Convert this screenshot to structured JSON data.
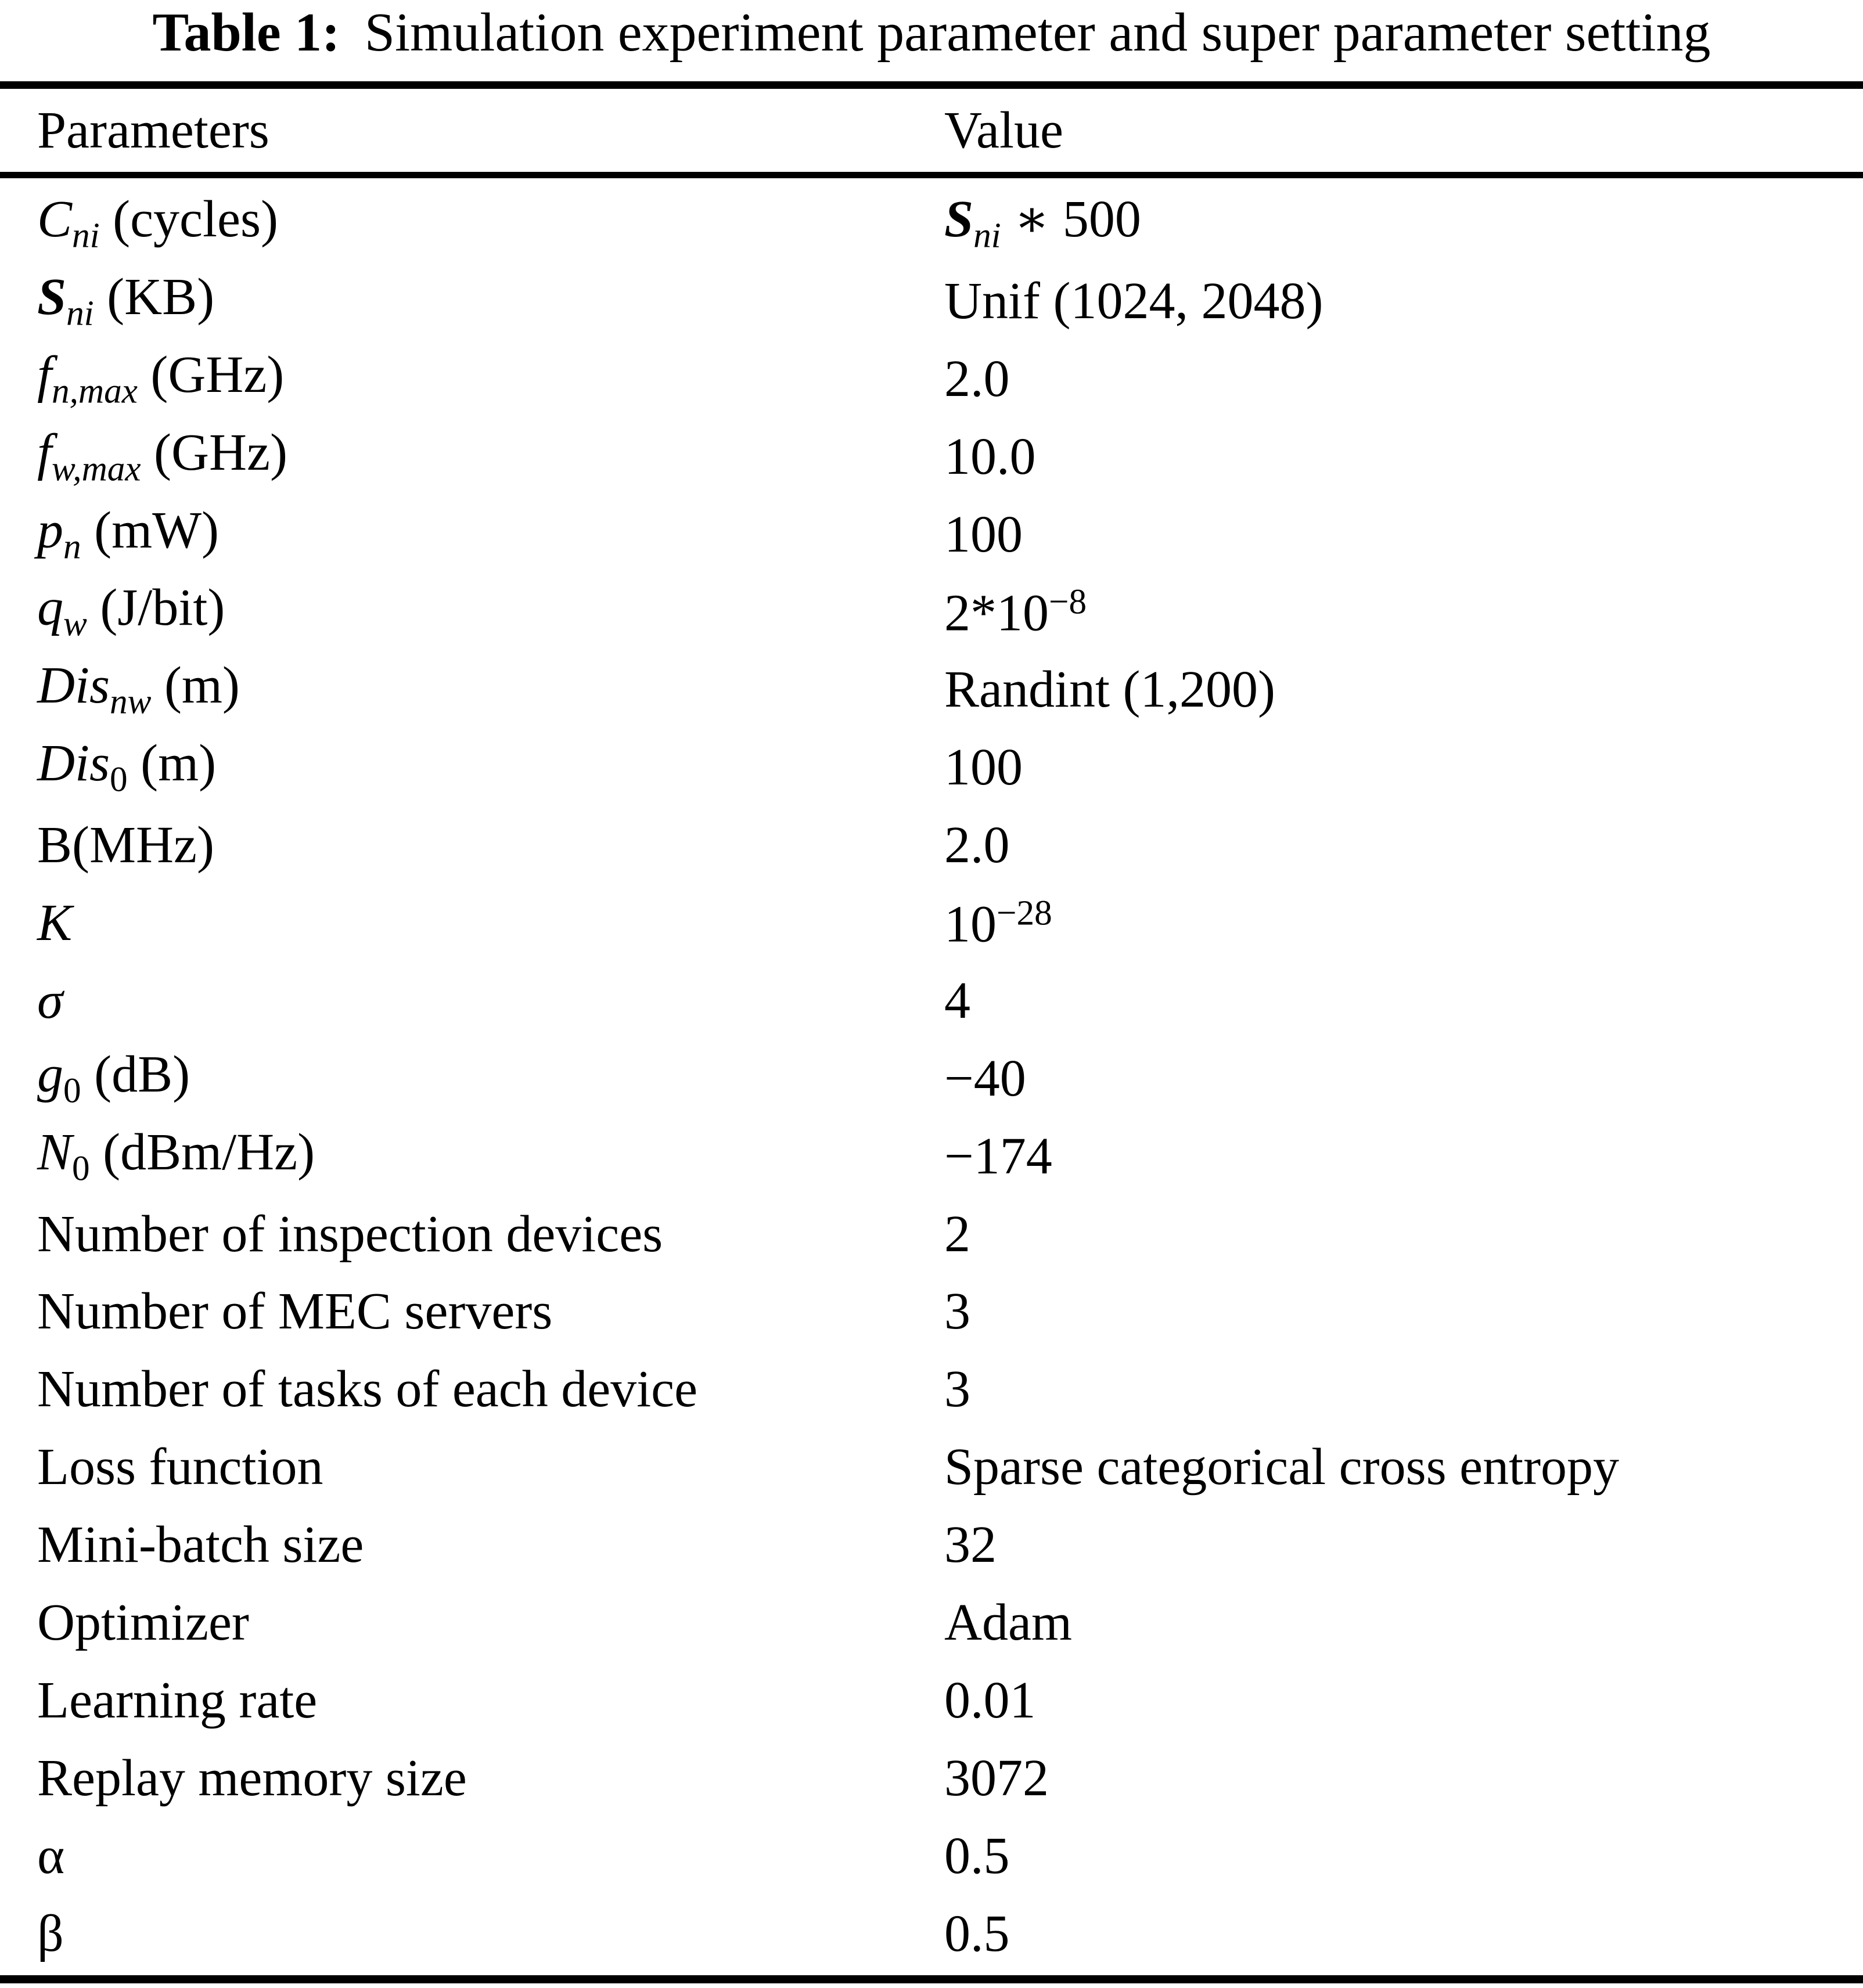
{
  "title": {
    "label": "Table 1:",
    "text": "Simulation experiment parameter and super parameter setting"
  },
  "columns": {
    "param": "Parameters",
    "value": "Value"
  },
  "rows": [
    {
      "param": [
        [
          "C",
          "i"
        ],
        [
          "ni",
          "is"
        ],
        [
          " (cycles)",
          ""
        ]
      ],
      "value": [
        [
          "S",
          "bi"
        ],
        [
          "ni",
          "is"
        ],
        [
          " ∗ 500",
          ""
        ]
      ]
    },
    {
      "param": [
        [
          "S",
          "bi"
        ],
        [
          "ni",
          "is"
        ],
        [
          " (KB)",
          ""
        ]
      ],
      "value": [
        [
          "Unif (1024, 2048)",
          ""
        ]
      ]
    },
    {
      "param": [
        [
          "f",
          "i"
        ],
        [
          "n,max",
          "is"
        ],
        [
          " (GHz)",
          ""
        ]
      ],
      "value": [
        [
          "2.0",
          ""
        ]
      ]
    },
    {
      "param": [
        [
          "f",
          "i"
        ],
        [
          "w,max",
          "is"
        ],
        [
          " (GHz)",
          ""
        ]
      ],
      "value": [
        [
          "10.0",
          ""
        ]
      ]
    },
    {
      "param": [
        [
          "p",
          "i"
        ],
        [
          "n",
          "is"
        ],
        [
          " (mW)",
          ""
        ]
      ],
      "value": [
        [
          "100",
          ""
        ]
      ]
    },
    {
      "param": [
        [
          "q",
          "i"
        ],
        [
          "w",
          "is"
        ],
        [
          " (J/bit)",
          ""
        ]
      ],
      "value": [
        [
          "2*10",
          ""
        ],
        [
          "−8",
          "p"
        ]
      ]
    },
    {
      "param": [
        [
          "Dis",
          "i"
        ],
        [
          "nw",
          "is"
        ],
        [
          " (m)",
          ""
        ]
      ],
      "value": [
        [
          "Randint (1,200)",
          ""
        ]
      ]
    },
    {
      "param": [
        [
          "Dis",
          "i"
        ],
        [
          "0",
          "s"
        ],
        [
          " (m)",
          ""
        ]
      ],
      "value": [
        [
          "100",
          ""
        ]
      ]
    },
    {
      "param": [
        [
          "B(MHz)",
          ""
        ]
      ],
      "value": [
        [
          "2.0",
          ""
        ]
      ]
    },
    {
      "param": [
        [
          "K",
          "i"
        ]
      ],
      "value": [
        [
          "10",
          ""
        ],
        [
          "−28",
          "p"
        ]
      ]
    },
    {
      "param": [
        [
          "σ",
          "i"
        ]
      ],
      "value": [
        [
          "4",
          ""
        ]
      ]
    },
    {
      "param": [
        [
          "g",
          "i"
        ],
        [
          "0",
          "s"
        ],
        [
          " (dB)",
          ""
        ]
      ],
      "value": [
        [
          "−40",
          ""
        ]
      ]
    },
    {
      "param": [
        [
          "N",
          "i"
        ],
        [
          "0",
          "s"
        ],
        [
          " (dBm/Hz)",
          ""
        ]
      ],
      "value": [
        [
          "−174",
          ""
        ]
      ]
    },
    {
      "param": [
        [
          "Number of inspection devices",
          ""
        ]
      ],
      "value": [
        [
          "2",
          ""
        ]
      ]
    },
    {
      "param": [
        [
          "Number of MEC servers",
          ""
        ]
      ],
      "value": [
        [
          "3",
          ""
        ]
      ]
    },
    {
      "param": [
        [
          "Number of tasks of each device",
          ""
        ]
      ],
      "value": [
        [
          "3",
          ""
        ]
      ]
    },
    {
      "param": [
        [
          "Loss function",
          ""
        ]
      ],
      "value": [
        [
          "Sparse categorical cross entropy",
          ""
        ]
      ]
    },
    {
      "param": [
        [
          "Mini-batch size",
          ""
        ]
      ],
      "value": [
        [
          "32",
          ""
        ]
      ]
    },
    {
      "param": [
        [
          "Optimizer",
          ""
        ]
      ],
      "value": [
        [
          "Adam",
          ""
        ]
      ]
    },
    {
      "param": [
        [
          "Learning rate",
          ""
        ]
      ],
      "value": [
        [
          "0.01",
          ""
        ]
      ]
    },
    {
      "param": [
        [
          "Replay memory size",
          ""
        ]
      ],
      "value": [
        [
          "3072",
          ""
        ]
      ]
    },
    {
      "param": [
        [
          "α",
          ""
        ]
      ],
      "value": [
        [
          "0.5",
          ""
        ]
      ]
    },
    {
      "param": [
        [
          "β",
          ""
        ]
      ],
      "value": [
        [
          "0.5",
          ""
        ]
      ]
    }
  ],
  "colors": {
    "text": "#000000",
    "background": "#ffffff",
    "rule": "#000000"
  }
}
